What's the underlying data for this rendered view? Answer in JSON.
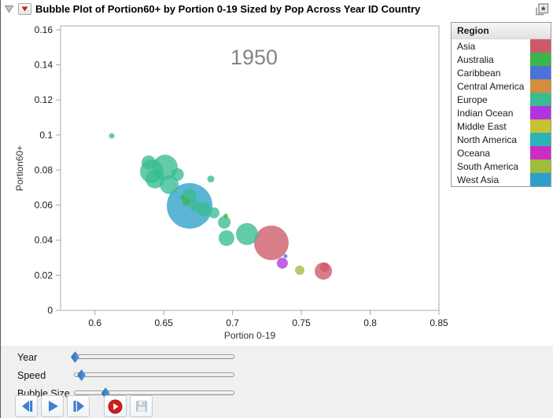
{
  "window": {
    "title": "Bubble Plot of Portion60+ by Portion 0-19 Sized by Pop Across Year ID Country"
  },
  "chart_data": {
    "type": "scatter",
    "subtype": "bubble",
    "year_annotation": "1950",
    "xlabel": "Portion 0-19",
    "ylabel": "Portion60+",
    "xlim": [
      0.575,
      0.85
    ],
    "ylim": [
      0,
      0.1622
    ],
    "xticks": [
      0.6,
      0.65,
      0.7,
      0.75,
      0.8,
      0.85
    ],
    "yticks": [
      0,
      0.02,
      0.04,
      0.06,
      0.08,
      0.1,
      0.12,
      0.14,
      0.16
    ],
    "grid": false,
    "legend_position": "right",
    "bubbles": [
      {
        "region": "West Asia",
        "x": 0.6688,
        "y": 0.0596,
        "r": 29
      },
      {
        "region": "Asia",
        "x": 0.7282,
        "y": 0.0385,
        "r": 22
      },
      {
        "region": "Europe",
        "x": 0.651,
        "y": 0.0816,
        "r": 16
      },
      {
        "region": "Europe",
        "x": 0.6413,
        "y": 0.0793,
        "r": 15
      },
      {
        "region": "Europe",
        "x": 0.7105,
        "y": 0.0435,
        "r": 14
      },
      {
        "region": "Europe",
        "x": 0.6436,
        "y": 0.0749,
        "r": 12
      },
      {
        "region": "Europe",
        "x": 0.654,
        "y": 0.0717,
        "r": 12
      },
      {
        "region": "Asia",
        "x": 0.766,
        "y": 0.0224,
        "r": 11
      },
      {
        "region": "Europe",
        "x": 0.6956,
        "y": 0.0412,
        "r": 10
      },
      {
        "region": "Europe",
        "x": 0.639,
        "y": 0.0843,
        "r": 9
      },
      {
        "region": "Europe",
        "x": 0.679,
        "y": 0.0578,
        "r": 9
      },
      {
        "region": "Europe",
        "x": 0.6688,
        "y": 0.0654,
        "r": 9
      },
      {
        "region": "Europe",
        "x": 0.694,
        "y": 0.0502,
        "r": 8
      },
      {
        "region": "Europe",
        "x": 0.66,
        "y": 0.0775,
        "r": 8
      },
      {
        "region": "Indian Ocean",
        "x": 0.7362,
        "y": 0.0269,
        "r": 7
      },
      {
        "region": "Europe",
        "x": 0.6865,
        "y": 0.0556,
        "r": 7
      },
      {
        "region": "Europe",
        "x": 0.6728,
        "y": 0.0596,
        "r": 7
      },
      {
        "region": "Asia",
        "x": 0.767,
        "y": 0.0246,
        "r": 6
      },
      {
        "region": "South America",
        "x": 0.7488,
        "y": 0.0229,
        "r": 6
      },
      {
        "region": "Australia",
        "x": 0.6665,
        "y": 0.0618,
        "r": 5
      },
      {
        "region": "Europe",
        "x": 0.6842,
        "y": 0.0749,
        "r": 4.5
      },
      {
        "region": "Europe",
        "x": 0.6122,
        "y": 0.0995,
        "r": 3.5
      },
      {
        "region": "Australia",
        "x": 0.6636,
        "y": 0.0645,
        "r": 3
      },
      {
        "region": "Australia",
        "x": 0.695,
        "y": 0.0538,
        "r": 3
      },
      {
        "region": "Caribbean",
        "x": 0.7385,
        "y": 0.0309,
        "r": 2.5
      }
    ]
  },
  "legend": {
    "header": "Region",
    "items": [
      {
        "label": "Asia",
        "color": "#cd5a68"
      },
      {
        "label": "Australia",
        "color": "#3eb54c"
      },
      {
        "label": "Caribbean",
        "color": "#4a73d8"
      },
      {
        "label": "Central America",
        "color": "#d28e3e"
      },
      {
        "label": "Europe",
        "color": "#39bc92"
      },
      {
        "label": "Indian Ocean",
        "color": "#b234e0"
      },
      {
        "label": "Middle East",
        "color": "#c6c233"
      },
      {
        "label": "North America",
        "color": "#2ab4b6"
      },
      {
        "label": "Oceana",
        "color": "#cd2bc6"
      },
      {
        "label": "South America",
        "color": "#9fbc3b"
      },
      {
        "label": "West Asia",
        "color": "#2da0c8"
      }
    ]
  },
  "controls": {
    "sliders": [
      {
        "label": "Year",
        "fraction": 0.005
      },
      {
        "label": "Speed",
        "fraction": 0.045
      },
      {
        "label": "Bubble Size",
        "fraction": 0.195
      }
    ],
    "buttons": [
      {
        "icon": "step-back-icon",
        "name": "step-back-button"
      },
      {
        "icon": "play-icon",
        "name": "play-button"
      },
      {
        "icon": "step-forward-icon",
        "name": "step-forward-button"
      },
      {
        "icon": "record-icon",
        "name": "record-button"
      },
      {
        "icon": "save-icon",
        "name": "save-button"
      }
    ],
    "accent_blue": "#3f81cf",
    "record_red": "#cf1c1c"
  }
}
